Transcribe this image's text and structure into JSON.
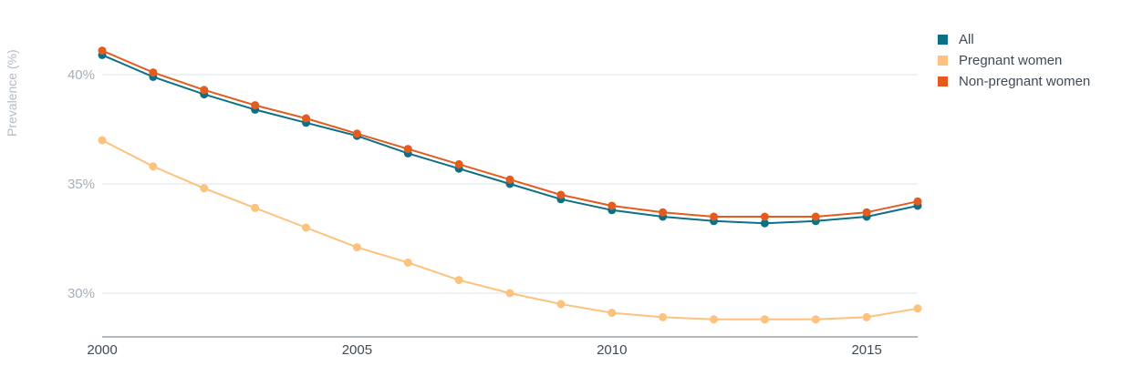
{
  "chart_data": {
    "type": "line",
    "title": "",
    "xlabel": "",
    "ylabel": "Prevalence (%)",
    "x": [
      2000,
      2001,
      2002,
      2003,
      2004,
      2005,
      2006,
      2007,
      2008,
      2009,
      2010,
      2011,
      2012,
      2013,
      2014,
      2015,
      2016
    ],
    "xticks": [
      "2000",
      "2005",
      "2010",
      "2015"
    ],
    "xtick_values": [
      2000,
      2005,
      2010,
      2015
    ],
    "yticks": [
      "30%",
      "35%",
      "40%"
    ],
    "ytick_values": [
      30,
      35,
      40
    ],
    "xlim": [
      2000,
      2016
    ],
    "ylim": [
      28,
      43
    ],
    "grid": true,
    "legend_position": "top-right",
    "series": [
      {
        "name": "All",
        "color": "#0e7087",
        "values": [
          40.9,
          39.9,
          39.1,
          38.4,
          37.8,
          37.2,
          36.4,
          35.7,
          35.0,
          34.3,
          33.8,
          33.5,
          33.3,
          33.2,
          33.3,
          33.5,
          34.0
        ]
      },
      {
        "name": "Pregnant women",
        "color": "#fdc27d",
        "values": [
          37.0,
          35.8,
          34.8,
          33.9,
          33.0,
          32.1,
          31.4,
          30.6,
          30.0,
          29.5,
          29.1,
          28.9,
          28.8,
          28.8,
          28.8,
          28.9,
          29.3
        ]
      },
      {
        "name": "Non-pregnant women",
        "color": "#e35c1e",
        "values": [
          41.1,
          40.1,
          39.3,
          38.6,
          38.0,
          37.3,
          36.6,
          35.9,
          35.2,
          34.5,
          34.0,
          33.7,
          33.5,
          33.5,
          33.5,
          33.7,
          34.2
        ]
      }
    ]
  }
}
